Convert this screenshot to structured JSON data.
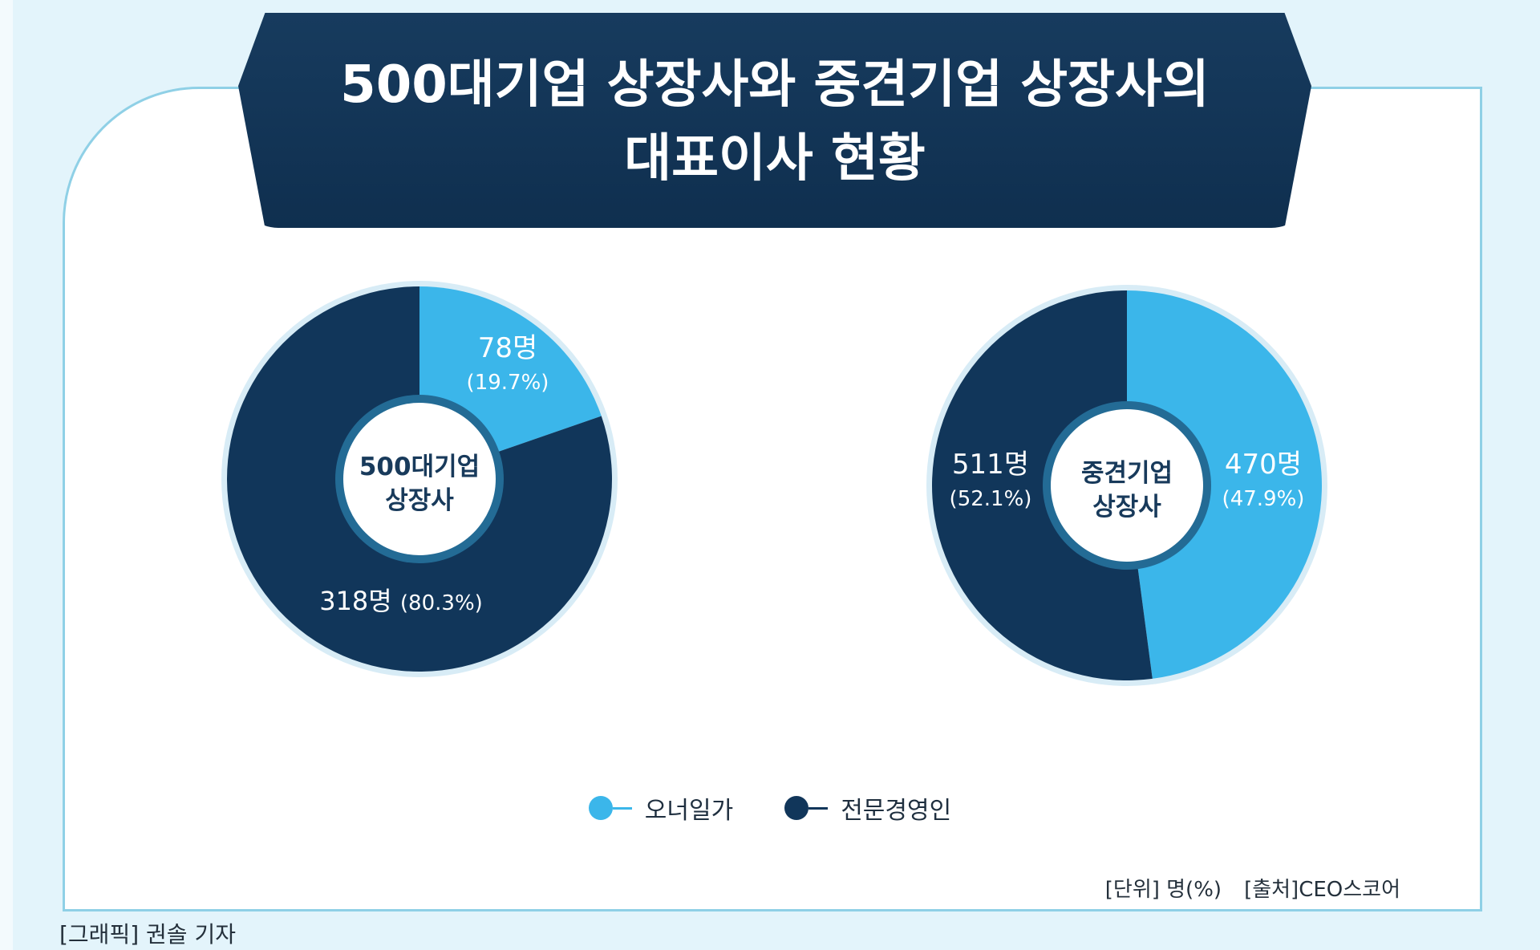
{
  "title": {
    "line1": "500대기업 상장사와 중견기업 상장사의",
    "line2": "대표이사 현황"
  },
  "colors": {
    "owner": "#3bb6ea",
    "professional": "#11365a",
    "banner": "#11365a",
    "frame": "#8fd0e6",
    "background": "#e3f4fb"
  },
  "chart_data": [
    {
      "type": "pie",
      "center_label": [
        "500대기업",
        "상장사"
      ],
      "slices": [
        {
          "name": "오너일가",
          "value": 78,
          "percent": 19.7,
          "label": "78명",
          "sublabel": "(19.7%)"
        },
        {
          "name": "전문경영인",
          "value": 318,
          "percent": 80.3,
          "label": "318명",
          "sublabel": "(80.3%)"
        }
      ]
    },
    {
      "type": "pie",
      "center_label": [
        "중견기업",
        "상장사"
      ],
      "slices": [
        {
          "name": "오너일가",
          "value": 470,
          "percent": 47.9,
          "label": "470명",
          "sublabel": "(47.9%)"
        },
        {
          "name": "전문경영인",
          "value": 511,
          "percent": 52.1,
          "label": "511명",
          "sublabel": "(52.1%)"
        }
      ]
    }
  ],
  "legend": {
    "owner": "오너일가",
    "professional": "전문경영인"
  },
  "footnote": {
    "unit": "[단위] 명(%)",
    "source": "[출처]CEO스코어"
  },
  "credit": "[그래픽] 권솔 기자"
}
